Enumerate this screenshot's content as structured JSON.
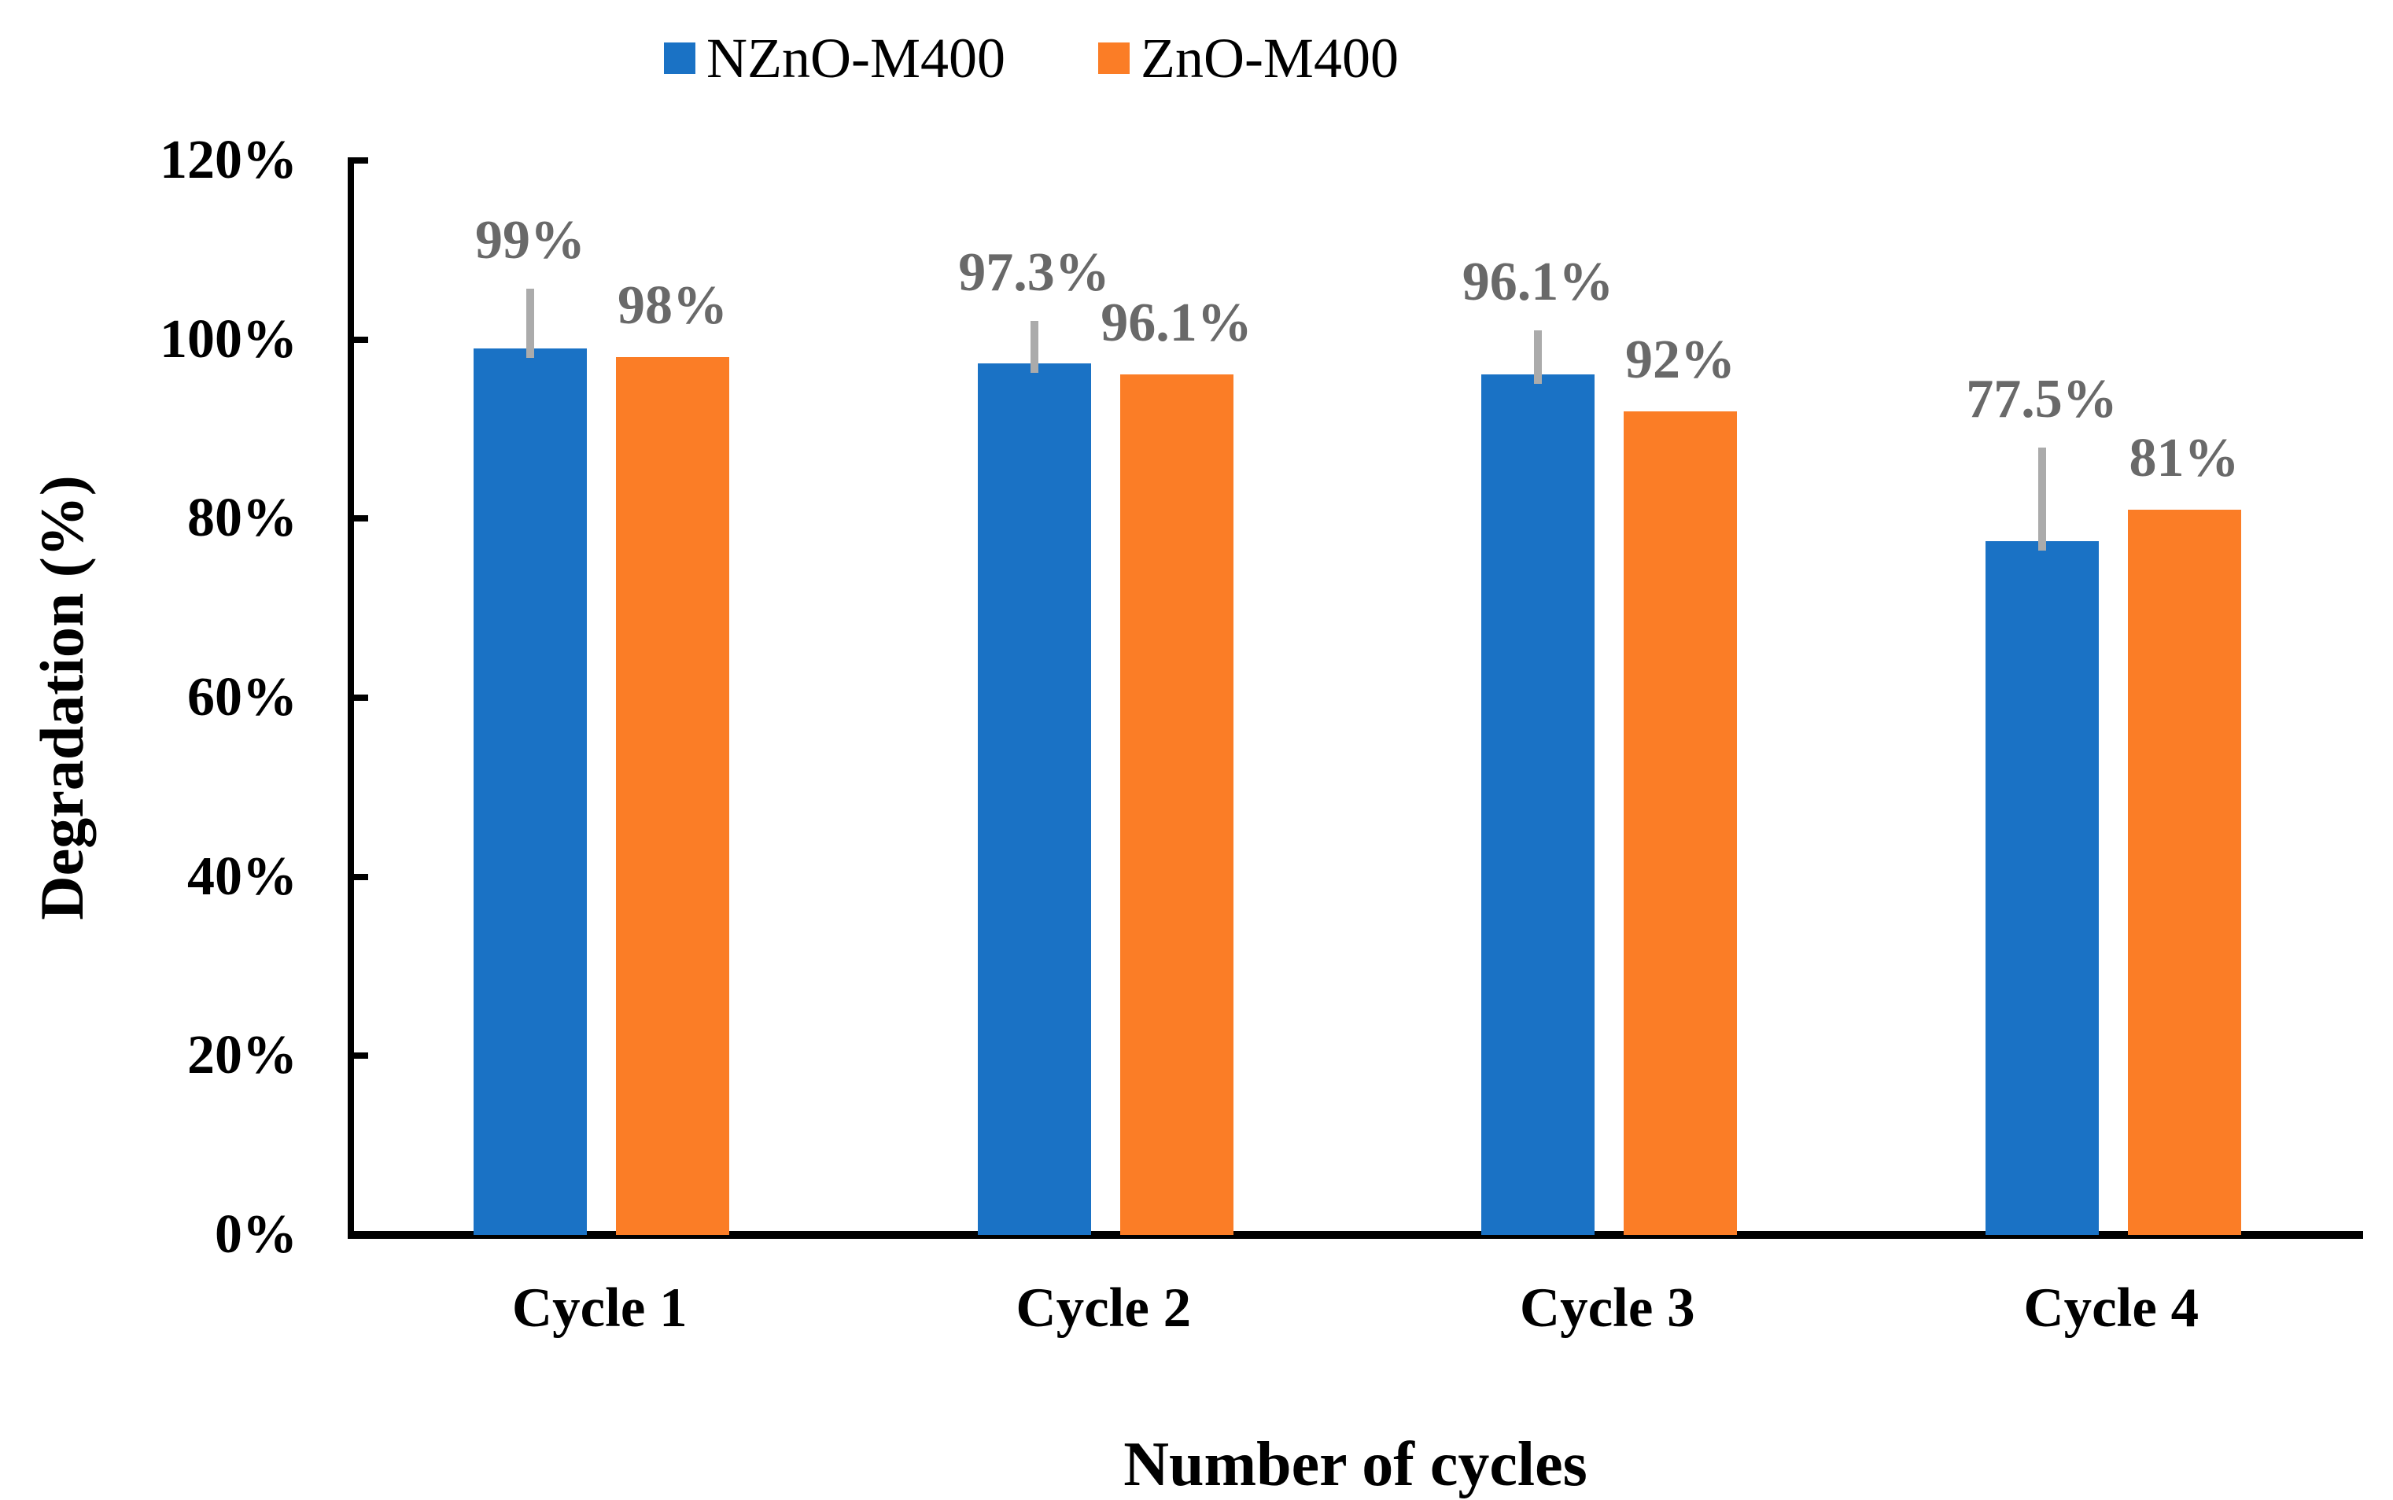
{
  "chart_data": {
    "type": "bar",
    "title": "",
    "xlabel": "Number of cycles",
    "ylabel": "Degradation (%)",
    "categories": [
      "Cycle 1",
      "Cycle 2",
      "Cycle 3",
      "Cycle 4"
    ],
    "series": [
      {
        "name": "NZnO-M400",
        "color": "#1A72C5",
        "values": [
          99,
          97.3,
          96.1,
          77.5
        ],
        "labels": [
          "99%",
          "97.3%",
          "96.1%",
          "77.5%"
        ],
        "error_up": [
          6.7,
          4.8,
          4.9,
          10.4
        ]
      },
      {
        "name": "ZnO-M400",
        "color": "#FB7D26",
        "values": [
          98,
          96.1,
          92,
          81
        ],
        "labels": [
          "98%",
          "96.1%",
          "92%",
          "81%"
        ],
        "error_up": [
          0,
          0,
          0,
          0
        ]
      }
    ],
    "y_axis": {
      "min": 0,
      "max": 120,
      "tick_step": 20,
      "tick_labels": [
        "0%",
        "20%",
        "40%",
        "60%",
        "80%",
        "100%",
        "120%"
      ]
    },
    "legend_position": "top",
    "grid": false,
    "styles": {
      "data_label_color": "#696969",
      "error_bar_color": "#ABABAB",
      "axis_color": "#000000",
      "background": "#FFFFFF"
    }
  }
}
